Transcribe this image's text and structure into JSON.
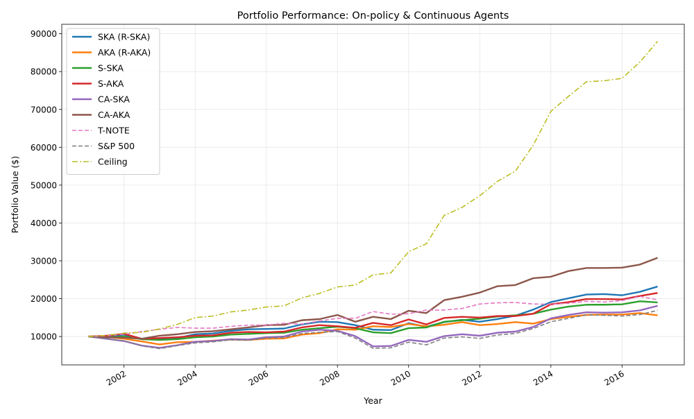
{
  "chart_data": {
    "type": "line",
    "title": "Portfolio Performance: On-policy & Continuous Agents",
    "xlabel": "Year",
    "ylabel": "Portfolio Value ($)",
    "xlim": [
      2000.25,
      2017.75
    ],
    "ylim": [
      2500,
      92500
    ],
    "xticks": [
      2002,
      2004,
      2006,
      2008,
      2010,
      2012,
      2014,
      2016
    ],
    "xtick_labels": [
      "2002",
      "2004",
      "2006",
      "2008",
      "2010",
      "2012",
      "2014",
      "2016"
    ],
    "yticks": [
      10000,
      20000,
      30000,
      40000,
      50000,
      60000,
      70000,
      80000,
      90000
    ],
    "ytick_labels": [
      "10000",
      "20000",
      "30000",
      "40000",
      "50000",
      "60000",
      "70000",
      "80000",
      "90000"
    ],
    "grid": true,
    "legend_position": "upper-left",
    "x": [
      2001.0,
      2001.5,
      2002.0,
      2002.5,
      2003.0,
      2003.5,
      2004.0,
      2004.5,
      2005.0,
      2005.5,
      2006.0,
      2006.5,
      2007.0,
      2007.5,
      2008.0,
      2008.5,
      2009.0,
      2009.5,
      2010.0,
      2010.5,
      2011.0,
      2011.5,
      2012.0,
      2012.5,
      2013.0,
      2013.5,
      2014.0,
      2014.5,
      2015.0,
      2015.5,
      2016.0,
      2016.5,
      2017.0
    ],
    "series": [
      {
        "name": "SKA (R-SKA)",
        "color": "#1f77b4",
        "style": "solid",
        "values": [
          10000,
          9700,
          10500,
          9300,
          9200,
          9600,
          10600,
          10800,
          11500,
          11900,
          12000,
          12100,
          13200,
          13900,
          13800,
          13000,
          11800,
          11700,
          13500,
          12600,
          13800,
          14400,
          13900,
          14600,
          15500,
          17100,
          19100,
          20100,
          21100,
          21200,
          20900,
          21800,
          23200
        ]
      },
      {
        "name": "AKA (R-AKA)",
        "color": "#ff7f0e",
        "style": "solid",
        "values": [
          10000,
          9900,
          9400,
          8700,
          7900,
          8500,
          8600,
          8900,
          9200,
          9100,
          9400,
          9500,
          10500,
          10900,
          11900,
          11800,
          12700,
          12500,
          13300,
          12700,
          13100,
          13800,
          13000,
          13300,
          13800,
          13400,
          14600,
          15200,
          15700,
          15800,
          15800,
          16200,
          15600
        ]
      },
      {
        "name": "S-SKA",
        "color": "#2ca02c",
        "style": "solid",
        "values": [
          10000,
          9800,
          10000,
          9300,
          9100,
          9300,
          9800,
          10000,
          10500,
          10700,
          10900,
          11000,
          11800,
          12200,
          12600,
          12200,
          11100,
          10900,
          12200,
          12400,
          13900,
          14300,
          14700,
          15300,
          15600,
          16000,
          17100,
          17900,
          18400,
          18400,
          18500,
          19300,
          19000
        ]
      },
      {
        "name": "S-AKA",
        "color": "#d62728",
        "style": "solid",
        "values": [
          10000,
          10200,
          10700,
          9400,
          9600,
          9800,
          10200,
          10300,
          11000,
          11200,
          11100,
          11300,
          12400,
          13000,
          12700,
          12300,
          13600,
          13000,
          14500,
          13200,
          14900,
          15200,
          15000,
          15400,
          15400,
          16000,
          18500,
          19100,
          19900,
          19900,
          19800,
          20700,
          21500
        ]
      },
      {
        "name": "CA-SKA",
        "color": "#9467bd",
        "style": "solid",
        "values": [
          10000,
          9400,
          8800,
          7600,
          7000,
          7700,
          8600,
          8800,
          9300,
          9200,
          9800,
          10000,
          11300,
          11800,
          11500,
          10100,
          7400,
          7500,
          9100,
          8600,
          10100,
          10600,
          10200,
          11000,
          11300,
          12500,
          14800,
          15700,
          16400,
          16300,
          16400,
          16900,
          18100
        ]
      },
      {
        "name": "CA-AKA",
        "color": "#8c564b",
        "style": "solid",
        "values": [
          10000,
          9800,
          9700,
          9400,
          10200,
          10600,
          11200,
          11400,
          11900,
          12400,
          13000,
          13100,
          14300,
          14600,
          15700,
          13900,
          15200,
          14600,
          16800,
          16200,
          19600,
          20500,
          21600,
          23300,
          23600,
          25400,
          25800,
          27300,
          28100,
          28100,
          28200,
          29000,
          30800
        ]
      },
      {
        "name": "T-NOTE",
        "color": "#e377c2",
        "style": "dashed",
        "values": [
          10000,
          10200,
          10600,
          11300,
          11900,
          12400,
          12200,
          12200,
          12700,
          13000,
          13000,
          13500,
          13300,
          14100,
          14800,
          14800,
          16600,
          15900,
          16000,
          17000,
          17000,
          17400,
          18600,
          18900,
          19000,
          18600,
          18500,
          18800,
          19300,
          19100,
          19500,
          20600,
          19700
        ]
      },
      {
        "name": "S&P 500",
        "color": "#7f7f7f",
        "style": "dashed",
        "values": [
          10000,
          9400,
          8900,
          7500,
          6800,
          7600,
          8300,
          8600,
          9100,
          9000,
          9600,
          9700,
          10800,
          11100,
          11300,
          9600,
          6900,
          7000,
          8500,
          7800,
          9600,
          9900,
          9500,
          10400,
          10800,
          12100,
          13900,
          14800,
          15700,
          15600,
          15400,
          15800,
          16900
        ]
      },
      {
        "name": "Ceiling",
        "color": "#bcbd22",
        "style": "dashdot",
        "values": [
          10000,
          10300,
          10900,
          11100,
          12000,
          13200,
          15000,
          15400,
          16500,
          17000,
          17800,
          18100,
          20200,
          21400,
          23100,
          23600,
          26300,
          26800,
          32400,
          34500,
          42000,
          44100,
          47200,
          51000,
          53700,
          60500,
          69500,
          73500,
          77300,
          77600,
          78200,
          82500,
          88000
        ]
      }
    ]
  }
}
